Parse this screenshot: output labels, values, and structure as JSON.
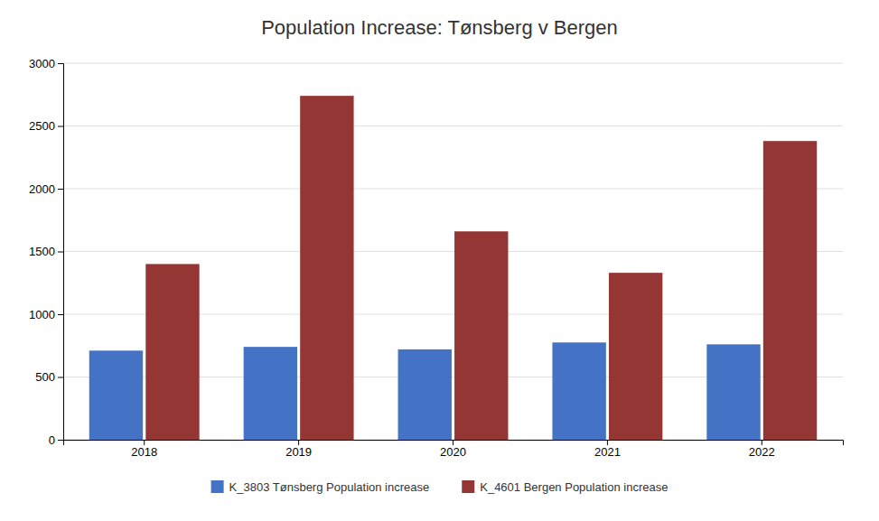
{
  "chart_data": {
    "type": "bar",
    "title": "Population Increase: Tønsberg v Bergen",
    "categories": [
      "2018",
      "2019",
      "2020",
      "2021",
      "2022"
    ],
    "series": [
      {
        "name": "K_3803 Tønsberg Population increase",
        "color": "#4472c4",
        "values": [
          710,
          740,
          720,
          775,
          760
        ]
      },
      {
        "name": "K_4601 Bergen Population increase",
        "color": "#943634",
        "values": [
          1400,
          2740,
          1660,
          1330,
          2380
        ]
      }
    ],
    "ylim": [
      0,
      3000
    ],
    "yticks": [
      0,
      500,
      1000,
      1500,
      2000,
      2500,
      3000
    ],
    "grid": true,
    "legend": "bottom"
  }
}
